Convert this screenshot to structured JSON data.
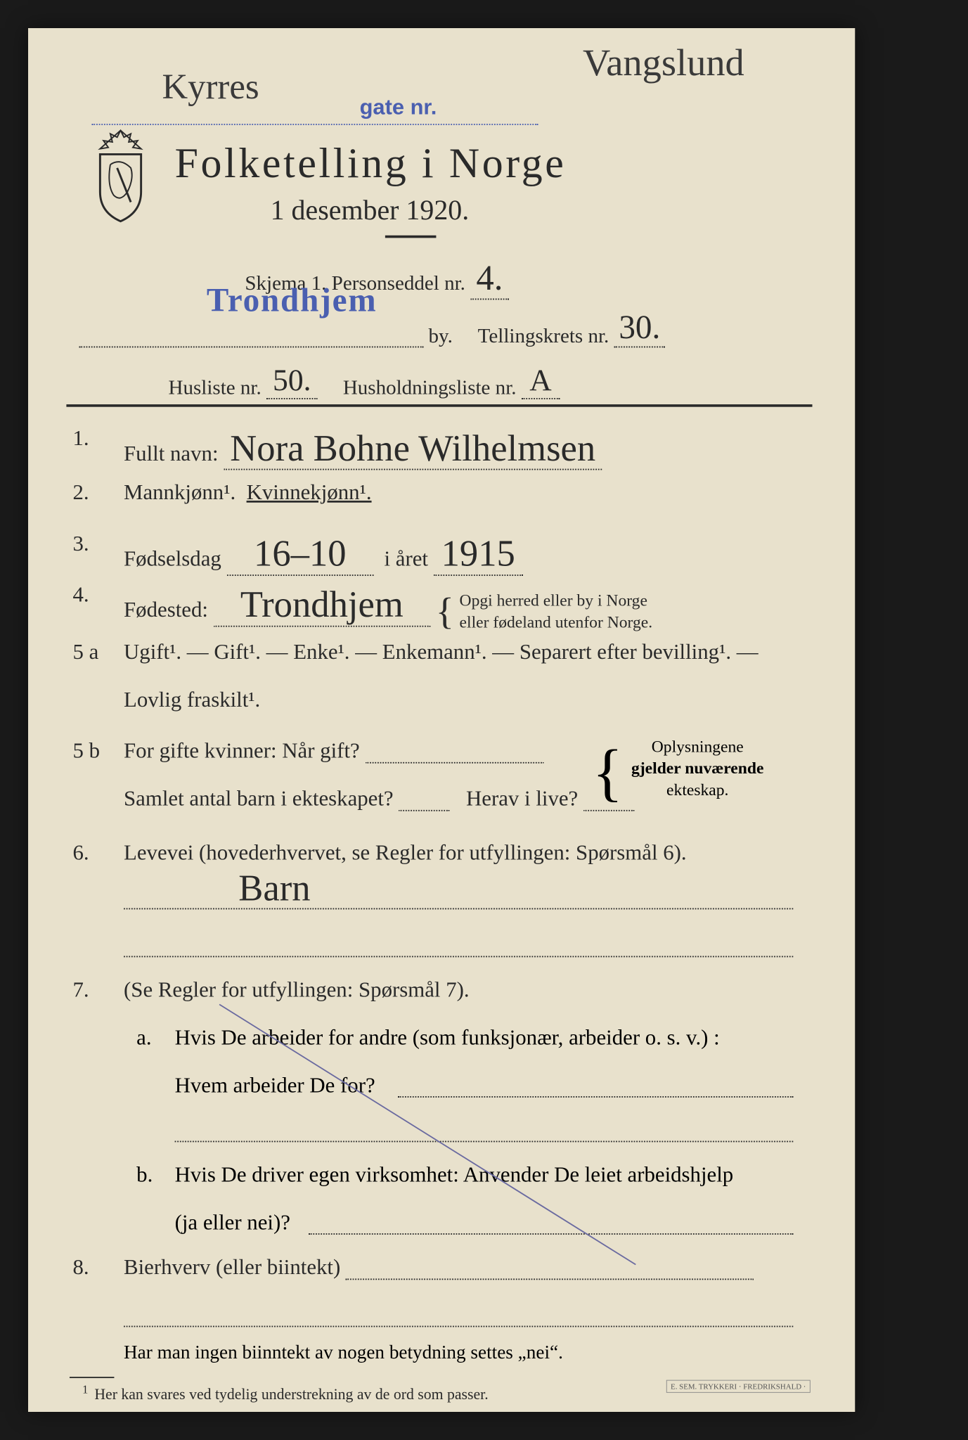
{
  "header": {
    "hand_top_left": "Kyrres",
    "hand_top_right": "Vangslund",
    "stamp_gate": "gate nr.",
    "title": "Folketelling i Norge",
    "subtitle": "1 desember 1920.",
    "skjema_label": "Skjema 1.   Personseddel nr.",
    "personseddel_nr": "4.",
    "city_stamp": "Trondhjem",
    "by_label": "by.",
    "tellingskrets_label": "Tellingskrets nr.",
    "tellingskrets_nr": "30.",
    "husliste_label": "Husliste nr.",
    "husliste_nr": "50.",
    "husholdning_label": "Husholdningsliste nr.",
    "husholdning_nr": "A"
  },
  "q1": {
    "num": "1.",
    "label": "Fullt navn:",
    "value": "Nora Bohne Wilhelmsen"
  },
  "q2": {
    "num": "2.",
    "m": "Mannkjønn¹.",
    "k": "Kvinnekjønn¹."
  },
  "q3": {
    "num": "3.",
    "label": "Fødselsdag",
    "day": "16–10",
    "year_label": "i året",
    "year": "1915"
  },
  "q4": {
    "num": "4.",
    "label": "Fødested:",
    "value": "Trondhjem",
    "note1": "Opgi herred eller by i Norge",
    "note2": "eller fødeland utenfor Norge."
  },
  "q5a": {
    "num": "5 a",
    "text": "Ugift¹. — Gift¹. — Enke¹. — Enkemann¹. — Separert efter bevilling¹. —",
    "text2": "Lovlig fraskilt¹."
  },
  "q5b": {
    "num": "5 b",
    "l1": "For gifte kvinner:  Når gift?",
    "l2a": "Samlet antal barn i ekteskapet?",
    "l2b": "Herav i live?",
    "note1": "Oplysningene",
    "note2": "gjelder nuværende",
    "note3": "ekteskap."
  },
  "q6": {
    "num": "6.",
    "label": "Levevei (hovederhvervet, se Regler for utfyllingen: Spørsmål 6).",
    "value": "Barn"
  },
  "q7": {
    "num": "7.",
    "label": "(Se Regler for utfyllingen:   Spørsmål 7).",
    "a": "a.",
    "a_text1": "Hvis De arbeider for andre (som funksjonær, arbeider o. s. v.) :",
    "a_text2": "Hvem arbeider De for?",
    "b": "b.",
    "b_text1": "Hvis De driver egen virksomhet:  Anvender De leiet arbeidshjelp",
    "b_text2": "(ja eller nei)?"
  },
  "q8": {
    "num": "8.",
    "label": "Bierhverv (eller biintekt)",
    "note": "Har man ingen biinntekt av nogen betydning settes „nei“."
  },
  "footnote": "Her kan svares ved tydelig understrekning av de ord som passer.",
  "printer": "E. SEM. TRYKKERI\n· FREDRIKSHALD ·",
  "colors": {
    "paper": "#e8e1cc",
    "ink": "#2a2a2a",
    "stamp_blue": "#4a5fb0",
    "hand_ink": "#3a3a3a"
  }
}
